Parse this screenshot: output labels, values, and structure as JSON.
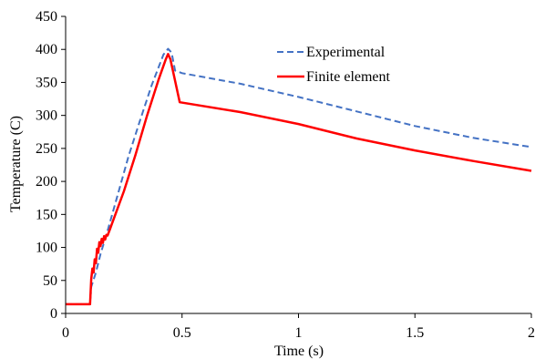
{
  "chart_data": {
    "type": "line",
    "title": "",
    "xlabel": "Time (s)",
    "ylabel": "Temperature (C)",
    "xlim": [
      0,
      2
    ],
    "ylim": [
      0,
      450
    ],
    "x_ticks": [
      0,
      0.5,
      1,
      1.5,
      2
    ],
    "x_tick_labels": [
      "0",
      "0.5",
      "1",
      "1.5",
      "2"
    ],
    "y_ticks": [
      0,
      50,
      100,
      150,
      200,
      250,
      300,
      350,
      400,
      450
    ],
    "y_tick_labels": [
      "0",
      "50",
      "100",
      "150",
      "200",
      "250",
      "300",
      "350",
      "400",
      "450"
    ],
    "grid": false,
    "legend_position": "top-right",
    "series": [
      {
        "name": "Experimental",
        "color": "#4472C4",
        "dash": "dashed",
        "x": [
          0.0,
          0.105,
          0.11,
          0.13,
          0.15,
          0.18,
          0.22,
          0.27,
          0.32,
          0.37,
          0.42,
          0.44,
          0.455,
          0.47,
          0.5,
          0.75,
          1.0,
          1.25,
          1.5,
          1.75,
          2.0
        ],
        "y": [
          14,
          14,
          40,
          62,
          90,
          125,
          175,
          238,
          293,
          346,
          392,
          401,
          395,
          368,
          364,
          348,
          328,
          306,
          284,
          266,
          252
        ]
      },
      {
        "name": "Finite element",
        "color": "#FF0000",
        "dash": "solid",
        "x": [
          0.0,
          0.105,
          0.11,
          0.115,
          0.12,
          0.125,
          0.13,
          0.135,
          0.14,
          0.145,
          0.15,
          0.155,
          0.16,
          0.165,
          0.17,
          0.175,
          0.18,
          0.19,
          0.2,
          0.25,
          0.3,
          0.35,
          0.4,
          0.43,
          0.44,
          0.45,
          0.49,
          0.75,
          1.0,
          1.25,
          1.5,
          1.75,
          2.0
        ],
        "y": [
          14,
          14,
          52,
          68,
          62,
          82,
          76,
          98,
          92,
          108,
          102,
          113,
          107,
          117,
          112,
          119,
          118,
          127,
          137,
          185,
          240,
          300,
          355,
          385,
          393,
          385,
          320,
          305,
          287,
          265,
          247,
          231,
          216
        ]
      }
    ]
  }
}
